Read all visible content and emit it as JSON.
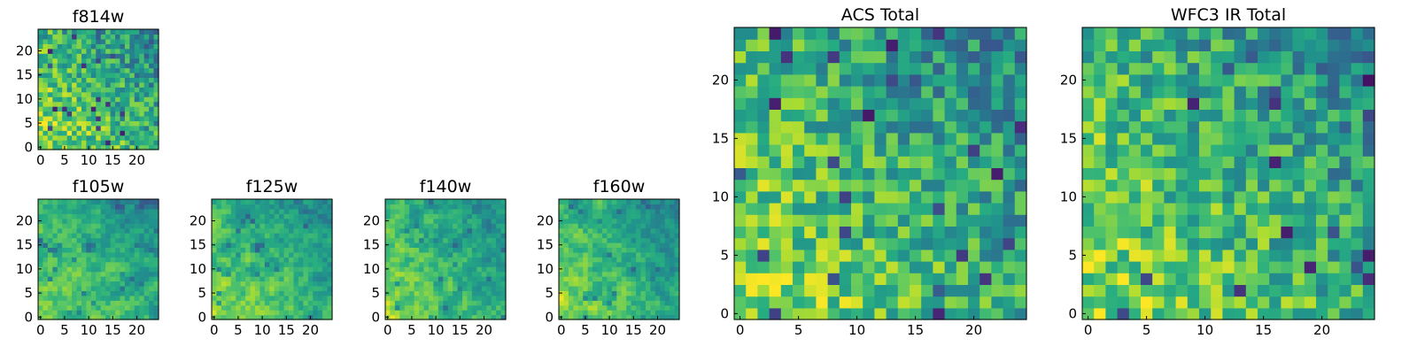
{
  "colormap": "viridis",
  "chart_data": [
    {
      "type": "heatmap",
      "title": "f814w",
      "grid": [
        25,
        25
      ],
      "xlim": [
        0,
        24
      ],
      "ylim": [
        0,
        24
      ],
      "xticks": [
        0,
        5,
        10,
        15,
        20
      ],
      "yticks": [
        0,
        5,
        10,
        15,
        20
      ],
      "seed": 11,
      "style": "noise"
    },
    {
      "type": "heatmap",
      "title": "f105w",
      "grid": [
        25,
        25
      ],
      "xlim": [
        0,
        24
      ],
      "ylim": [
        0,
        24
      ],
      "xticks": [
        0,
        5,
        10,
        15,
        20
      ],
      "yticks": [
        0,
        5,
        10,
        15,
        20
      ],
      "seed": 23,
      "style": "smooth"
    },
    {
      "type": "heatmap",
      "title": "f125w",
      "grid": [
        25,
        25
      ],
      "xlim": [
        0,
        24
      ],
      "ylim": [
        0,
        24
      ],
      "xticks": [
        0,
        5,
        10,
        15,
        20
      ],
      "yticks": [
        0,
        5,
        10,
        15,
        20
      ],
      "seed": 37,
      "style": "smooth"
    },
    {
      "type": "heatmap",
      "title": "f140w",
      "grid": [
        25,
        25
      ],
      "xlim": [
        0,
        24
      ],
      "ylim": [
        0,
        24
      ],
      "xticks": [
        0,
        5,
        10,
        15,
        20
      ],
      "yticks": [
        0,
        5,
        10,
        15,
        20
      ],
      "seed": 41,
      "style": "smooth"
    },
    {
      "type": "heatmap",
      "title": "f160w",
      "grid": [
        25,
        25
      ],
      "xlim": [
        0,
        24
      ],
      "ylim": [
        0,
        24
      ],
      "xticks": [
        0,
        5,
        10,
        15,
        20
      ],
      "yticks": [
        0,
        5,
        10,
        15,
        20
      ],
      "seed": 53,
      "style": "smooth"
    },
    {
      "type": "heatmap",
      "title": "ACS Total",
      "grid": [
        25,
        25
      ],
      "xlim": [
        0,
        24
      ],
      "ylim": [
        0,
        24
      ],
      "xticks": [
        0,
        5,
        10,
        15,
        20
      ],
      "yticks": [
        0,
        5,
        10,
        15,
        20
      ],
      "seed": 67,
      "style": "noise"
    },
    {
      "type": "heatmap",
      "title": "WFC3 IR Total",
      "grid": [
        25,
        25
      ],
      "xlim": [
        0,
        24
      ],
      "ylim": [
        0,
        24
      ],
      "xticks": [
        0,
        5,
        10,
        15,
        20
      ],
      "yticks": [
        0,
        5,
        10,
        15,
        20
      ],
      "seed": 79,
      "style": "noise"
    }
  ]
}
